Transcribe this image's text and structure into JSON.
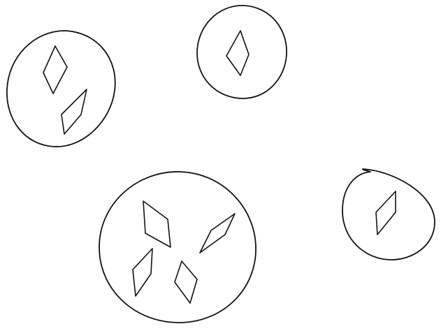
{
  "colors": {
    "ink": "#111111",
    "background": "#ffffff"
  },
  "groups": [
    {
      "id": "group-1",
      "diamond_count": 2
    },
    {
      "id": "group-2",
      "diamond_count": 1
    },
    {
      "id": "group-3",
      "diamond_count": 4
    },
    {
      "id": "group-4",
      "diamond_count": 1
    }
  ]
}
